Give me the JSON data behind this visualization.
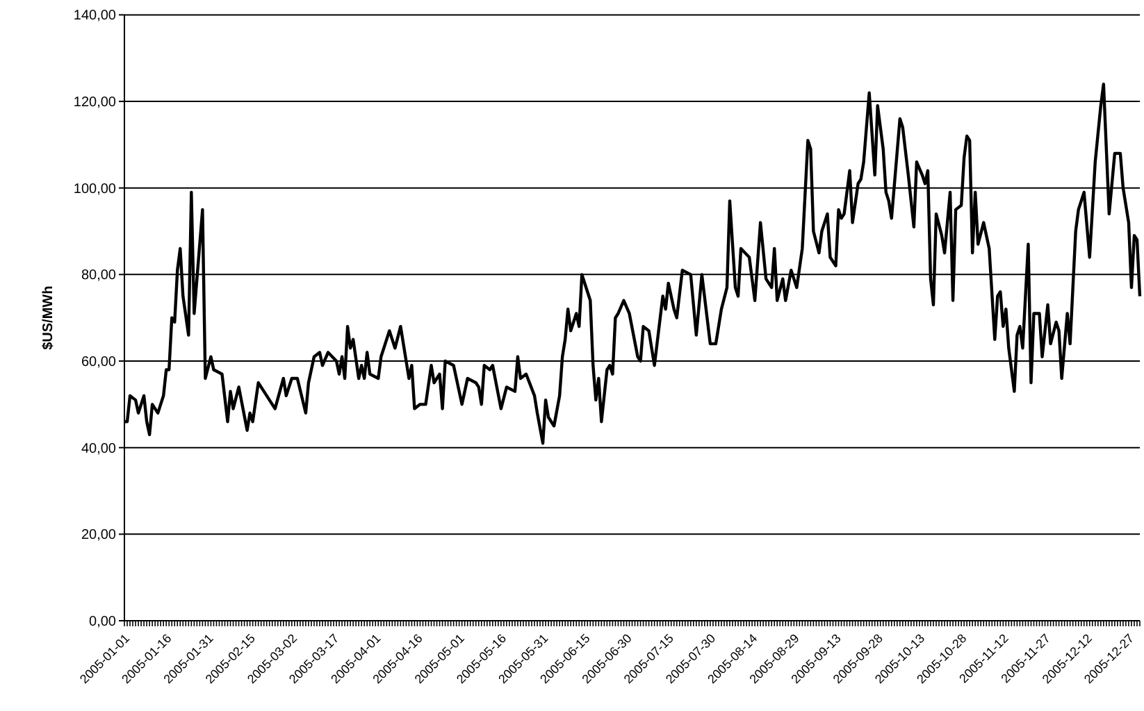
{
  "chart_data": {
    "type": "line",
    "ylabel": "$US/MWh",
    "xlim": [
      "2005-01-01",
      "2005-12-31"
    ],
    "ylim": [
      0,
      140
    ],
    "xticks": [
      "2005-01-01",
      "2005-01-16",
      "2005-01-31",
      "2005-02-15",
      "2005-03-02",
      "2005-03-17",
      "2005-04-01",
      "2005-04-16",
      "2005-05-01",
      "2005-05-16",
      "2005-05-31",
      "2005-06-15",
      "2005-06-30",
      "2005-07-15",
      "2005-07-30",
      "2005-08-14",
      "2005-08-29",
      "2005-09-13",
      "2005-09-28",
      "2005-10-13",
      "2005-10-28",
      "2005-11-12",
      "2005-11-27",
      "2005-12-12",
      "2005-12-27"
    ],
    "yticks": [
      {
        "value": 0,
        "label": "0,00"
      },
      {
        "value": 20,
        "label": "20,00"
      },
      {
        "value": 40,
        "label": "40,00"
      },
      {
        "value": 60,
        "label": "60,00"
      },
      {
        "value": 80,
        "label": "80,00"
      },
      {
        "value": 100,
        "label": "100,00"
      },
      {
        "value": 120,
        "label": "120,00"
      },
      {
        "value": 140,
        "label": "140,00"
      }
    ],
    "grid": "y",
    "line_style": "solid",
    "marker": "none",
    "series": [
      {
        "color": "#000000",
        "x": [
          "2005-01-01",
          "2005-01-02",
          "2005-01-03",
          "2005-01-05",
          "2005-01-06",
          "2005-01-08",
          "2005-01-09",
          "2005-01-10",
          "2005-01-11",
          "2005-01-13",
          "2005-01-15",
          "2005-01-16",
          "2005-01-17",
          "2005-01-18",
          "2005-01-19",
          "2005-01-20",
          "2005-01-21",
          "2005-01-22",
          "2005-01-24",
          "2005-01-25",
          "2005-01-26",
          "2005-01-29",
          "2005-01-30",
          "2005-02-01",
          "2005-02-02",
          "2005-02-05",
          "2005-02-07",
          "2005-02-08",
          "2005-02-09",
          "2005-02-11",
          "2005-02-14",
          "2005-02-15",
          "2005-02-16",
          "2005-02-18",
          "2005-02-20",
          "2005-02-24",
          "2005-02-27",
          "2005-02-28",
          "2005-03-02",
          "2005-03-04",
          "2005-03-07",
          "2005-03-08",
          "2005-03-10",
          "2005-03-12",
          "2005-03-13",
          "2005-03-15",
          "2005-03-18",
          "2005-03-19",
          "2005-03-20",
          "2005-03-21",
          "2005-03-22",
          "2005-03-23",
          "2005-03-24",
          "2005-03-26",
          "2005-03-27",
          "2005-03-28",
          "2005-03-29",
          "2005-03-30",
          "2005-04-02",
          "2005-04-03",
          "2005-04-06",
          "2005-04-08",
          "2005-04-10",
          "2005-04-13",
          "2005-04-14",
          "2005-04-15",
          "2005-04-17",
          "2005-04-19",
          "2005-04-21",
          "2005-04-22",
          "2005-04-24",
          "2005-04-25",
          "2005-04-26",
          "2005-04-29",
          "2005-04-30",
          "2005-05-02",
          "2005-05-04",
          "2005-05-07",
          "2005-05-08",
          "2005-05-09",
          "2005-05-10",
          "2005-05-12",
          "2005-05-13",
          "2005-05-16",
          "2005-05-18",
          "2005-05-21",
          "2005-05-22",
          "2005-05-23",
          "2005-05-25",
          "2005-05-28",
          "2005-05-29",
          "2005-05-31",
          "2005-06-01",
          "2005-06-02",
          "2005-06-04",
          "2005-06-06",
          "2005-06-07",
          "2005-06-08",
          "2005-06-09",
          "2005-06-10",
          "2005-06-12",
          "2005-06-13",
          "2005-06-14",
          "2005-06-17",
          "2005-06-18",
          "2005-06-19",
          "2005-06-20",
          "2005-06-21",
          "2005-06-23",
          "2005-06-24",
          "2005-06-25",
          "2005-06-26",
          "2005-06-27",
          "2005-06-29",
          "2005-07-01",
          "2005-07-04",
          "2005-07-05",
          "2005-07-06",
          "2005-07-08",
          "2005-07-09",
          "2005-07-10",
          "2005-07-13",
          "2005-07-14",
          "2005-07-15",
          "2005-07-17",
          "2005-07-18",
          "2005-07-20",
          "2005-07-23",
          "2005-07-25",
          "2005-07-27",
          "2005-07-30",
          "2005-08-01",
          "2005-08-03",
          "2005-08-05",
          "2005-08-06",
          "2005-08-08",
          "2005-08-09",
          "2005-08-10",
          "2005-08-13",
          "2005-08-15",
          "2005-08-17",
          "2005-08-19",
          "2005-08-21",
          "2005-08-22",
          "2005-08-23",
          "2005-08-25",
          "2005-08-26",
          "2005-08-28",
          "2005-08-30",
          "2005-09-01",
          "2005-09-03",
          "2005-09-04",
          "2005-09-05",
          "2005-09-07",
          "2005-09-08",
          "2005-09-10",
          "2005-09-11",
          "2005-09-13",
          "2005-09-14",
          "2005-09-15",
          "2005-09-16",
          "2005-09-18",
          "2005-09-19",
          "2005-09-21",
          "2005-09-22",
          "2005-09-23",
          "2005-09-25",
          "2005-09-27",
          "2005-09-28",
          "2005-09-30",
          "2005-10-01",
          "2005-10-02",
          "2005-10-03",
          "2005-10-06",
          "2005-10-07",
          "2005-10-09",
          "2005-10-11",
          "2005-10-12",
          "2005-10-14",
          "2005-10-15",
          "2005-10-16",
          "2005-10-17",
          "2005-10-18",
          "2005-10-19",
          "2005-10-21",
          "2005-10-22",
          "2005-10-24",
          "2005-10-25",
          "2005-10-26",
          "2005-10-28",
          "2005-10-29",
          "2005-10-30",
          "2005-10-31",
          "2005-11-01",
          "2005-11-02",
          "2005-11-03",
          "2005-11-05",
          "2005-11-07",
          "2005-11-09",
          "2005-11-10",
          "2005-11-11",
          "2005-11-12",
          "2005-11-13",
          "2005-11-14",
          "2005-11-16",
          "2005-11-17",
          "2005-11-18",
          "2005-11-19",
          "2005-11-21",
          "2005-11-22",
          "2005-11-23",
          "2005-11-25",
          "2005-11-26",
          "2005-11-28",
          "2005-11-29",
          "2005-12-01",
          "2005-12-02",
          "2005-12-03",
          "2005-12-05",
          "2005-12-06",
          "2005-12-08",
          "2005-12-09",
          "2005-12-11",
          "2005-12-13",
          "2005-12-15",
          "2005-12-17",
          "2005-12-18",
          "2005-12-20",
          "2005-12-22",
          "2005-12-24",
          "2005-12-25",
          "2005-12-27",
          "2005-12-28",
          "2005-12-29",
          "2005-12-30",
          "2005-12-31"
        ],
        "values": [
          46,
          46,
          52,
          51,
          48,
          52,
          46,
          43,
          50,
          48,
          52,
          58,
          58,
          70,
          69,
          81,
          86,
          75,
          66,
          99,
          71,
          95,
          56,
          61,
          58,
          57,
          46,
          53,
          49,
          54,
          44,
          48,
          46,
          55,
          53,
          49,
          56,
          52,
          56,
          56,
          48,
          55,
          61,
          62,
          59,
          62,
          60,
          57,
          61,
          56,
          68,
          63,
          65,
          56,
          59,
          56,
          62,
          57,
          56,
          61,
          67,
          63,
          68,
          56,
          59,
          49,
          50,
          50,
          59,
          55,
          57,
          49,
          60,
          59,
          56,
          50,
          56,
          55,
          54,
          50,
          59,
          58,
          59,
          49,
          54,
          53,
          61,
          56,
          57,
          52,
          48,
          41,
          51,
          47,
          45,
          52,
          61,
          65,
          72,
          67,
          71,
          68,
          80,
          74,
          59,
          51,
          56,
          46,
          58,
          59,
          57,
          70,
          71,
          74,
          71,
          61,
          60,
          68,
          67,
          63,
          59,
          75,
          72,
          78,
          72,
          70,
          81,
          80,
          66,
          80,
          64,
          64,
          72,
          77,
          97,
          77,
          75,
          86,
          84,
          74,
          92,
          79,
          77,
          86,
          74,
          79,
          74,
          81,
          77,
          86,
          111,
          109,
          90,
          85,
          90,
          94,
          84,
          82,
          95,
          93,
          94,
          104,
          92,
          101,
          102,
          106,
          122,
          103,
          119,
          109,
          99,
          97,
          93,
          116,
          114,
          103,
          91,
          106,
          103,
          101,
          104,
          79,
          73,
          94,
          89,
          85,
          99,
          74,
          95,
          96,
          107,
          112,
          111,
          85,
          99,
          87,
          92,
          86,
          65,
          75,
          76,
          68,
          72,
          63,
          53,
          66,
          68,
          63,
          87,
          55,
          71,
          71,
          61,
          73,
          64,
          69,
          67,
          56,
          71,
          64,
          90,
          95,
          99,
          84,
          106,
          119,
          124,
          94,
          108,
          108,
          100,
          92,
          77,
          89,
          88,
          75
        ]
      }
    ]
  }
}
